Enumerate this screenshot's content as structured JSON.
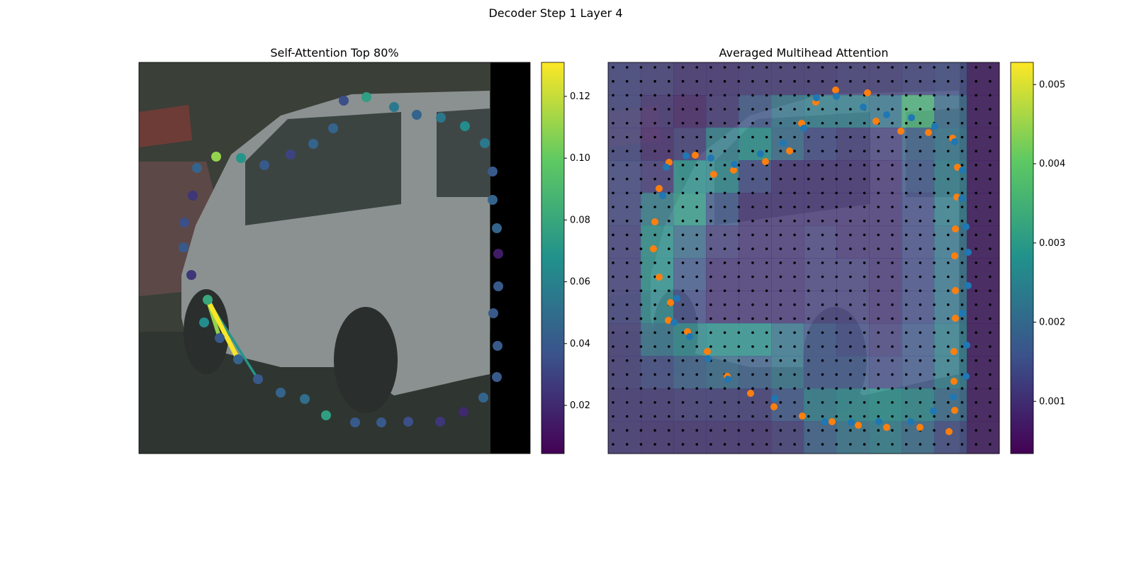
{
  "title": "Decoder Step 1 Layer 4",
  "chart_data": [
    {
      "type": "attention-scatter",
      "title": "Self-Attention Top 80%",
      "colormap": "viridis",
      "xlim": [
        0,
        552
      ],
      "ylim": [
        552,
        0
      ],
      "x": [
        97,
        92,
        114,
        140,
        168,
        200,
        234,
        264,
        305,
        342,
        380,
        425,
        458,
        486,
        505,
        506,
        500,
        507,
        507,
        505,
        499,
        499,
        488,
        460,
        426,
        392,
        360,
        321,
        289,
        274,
        246,
        214,
        177,
        144,
        109,
        82,
        76,
        64,
        63,
        74
      ],
      "y": [
        217,
        185,
        163,
        133,
        105,
        86,
        77,
        54,
        44,
        44,
        45,
        45,
        59,
        79,
        108,
        152,
        198,
        236,
        282,
        318,
        358,
        398,
        438,
        462,
        474,
        478,
        489,
        503,
        498,
        459,
        437,
        422,
        407,
        417,
        419,
        403,
        364,
        326,
        291,
        252
      ],
      "values": [
        0.08,
        0.065,
        0.04,
        0.045,
        0.04,
        0.045,
        0.05,
        0.075,
        0.04,
        0.04,
        0.035,
        0.025,
        0.02,
        0.045,
        0.04,
        0.04,
        0.04,
        0.04,
        0.015,
        0.045,
        0.045,
        0.04,
        0.055,
        0.065,
        0.055,
        0.045,
        0.055,
        0.075,
        0.035,
        0.045,
        0.045,
        0.03,
        0.04,
        0.07,
        0.11,
        0.045,
        0.025,
        0.035,
        0.04,
        0.025
      ],
      "links": {
        "from": 0,
        "to": [
          4,
          2,
          3
        ],
        "values": [
          0.07,
          0.11,
          0.13
        ]
      },
      "clim": [
        0.0044,
        0.131
      ],
      "cticks": [
        0.02,
        0.04,
        0.06,
        0.08,
        {
          "value": 0.1,
          "label": "0.10"
        },
        0.12
      ]
    },
    {
      "type": "heatmap",
      "title": "Averaged Multihead Attention",
      "colormap": "viridis",
      "xlim": [
        0,
        552
      ],
      "ylim": [
        552,
        0
      ],
      "grid": [
        [
          0.0013,
          0.0012,
          0.001,
          0.001,
          0.0011,
          0.0011,
          0.0011,
          0.0012,
          0.0012,
          0.0013,
          0.0014,
          0.0007
        ],
        [
          0.0013,
          0.001,
          0.0008,
          0.0011,
          0.0016,
          0.0022,
          0.0024,
          0.0024,
          0.0022,
          0.0035,
          0.002,
          0.0007
        ],
        [
          0.0013,
          0.0009,
          0.0012,
          0.0024,
          0.0028,
          0.002,
          0.0014,
          0.0012,
          0.0012,
          0.0018,
          0.0022,
          0.0007
        ],
        [
          0.0014,
          0.0012,
          0.0028,
          0.0026,
          0.0014,
          0.001,
          0.001,
          0.001,
          0.001,
          0.0016,
          0.0024,
          0.0007
        ],
        [
          0.0014,
          0.0024,
          0.003,
          0.0016,
          0.001,
          0.001,
          0.001,
          0.001,
          0.001,
          0.0014,
          0.0024,
          0.0007
        ],
        [
          0.0013,
          0.0028,
          0.002,
          0.0012,
          0.001,
          0.001,
          0.0012,
          0.001,
          0.001,
          0.0014,
          0.0022,
          0.0007
        ],
        [
          0.0013,
          0.0028,
          0.0016,
          0.001,
          0.001,
          0.001,
          0.0012,
          0.0012,
          0.001,
          0.0014,
          0.0022,
          0.0007
        ],
        [
          0.0013,
          0.0026,
          0.0014,
          0.001,
          0.001,
          0.001,
          0.0012,
          0.0012,
          0.001,
          0.0014,
          0.0022,
          0.0007
        ],
        [
          0.0012,
          0.0022,
          0.0026,
          0.0028,
          0.0028,
          0.0022,
          0.0016,
          0.0014,
          0.0012,
          0.0016,
          0.0024,
          0.0007
        ],
        [
          0.0012,
          0.0014,
          0.0018,
          0.002,
          0.0018,
          0.0022,
          0.0016,
          0.0016,
          0.0014,
          0.0016,
          0.0024,
          0.0007
        ],
        [
          0.0011,
          0.0011,
          0.0012,
          0.0012,
          0.0012,
          0.0016,
          0.0024,
          0.0026,
          0.0028,
          0.0026,
          0.002,
          0.0007
        ],
        [
          0.0011,
          0.001,
          0.001,
          0.001,
          0.001,
          0.0012,
          0.0018,
          0.0022,
          0.0024,
          0.002,
          0.0014,
          0.0007
        ]
      ],
      "clim": [
        0.00034,
        0.00528
      ],
      "cticks": [
        0.001,
        0.002,
        0.003,
        0.004,
        0.005
      ],
      "series": [
        {
          "color": "#ff7f0e",
          "x": [
            64,
            66,
            72,
            86,
            123,
            149,
            177,
            222,
            256,
            273,
            293,
            321,
            366,
            378,
            413,
            452,
            486,
            493,
            492,
            490,
            489,
            490,
            490,
            488,
            488,
            489,
            481,
            440,
            393,
            353,
            316,
            274,
            234,
            201,
            168,
            140,
            112,
            88,
            85,
            72
          ],
          "y": [
            289,
            327,
            374,
            411,
            421,
            394,
            400,
            412,
            427,
            466,
            496,
            513,
            509,
            469,
            455,
            453,
            445,
            404,
            362,
            317,
            279,
            230,
            191,
            144,
            102,
            61,
            31,
            37,
            37,
            40,
            45,
            53,
            66,
            85,
            109,
            144,
            172,
            213,
            188,
            249
          ]
        },
        {
          "color": "#1f77b4",
          "x": [
            77,
            82,
            110,
            145,
            178,
            215,
            247,
            276,
            294,
            322,
            360,
            393,
            428,
            461,
            489,
            500,
            499,
            505,
            508,
            508,
            500,
            506,
            505,
            487,
            459,
            427,
            382,
            343,
            306,
            235,
            169,
            141,
            115,
            93,
            97
          ],
          "y": [
            364,
            404,
            420,
            417,
            408,
            423,
            438,
            459,
            502,
            504,
            489,
            478,
            474,
            462,
            440,
            400,
            360,
            320,
            284,
            237,
            198,
            153,
            109,
            80,
            60,
            45,
            45,
            44,
            45,
            78,
            105,
            134,
            165,
            185,
            219
          ]
        }
      ]
    }
  ]
}
